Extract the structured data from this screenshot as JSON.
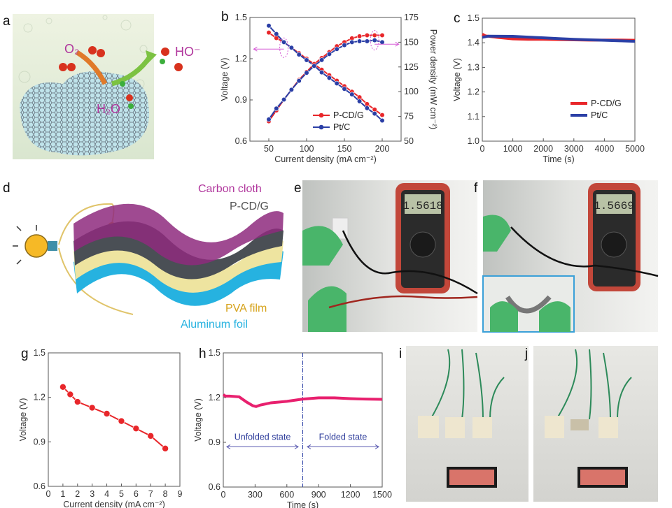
{
  "panels": {
    "a": {
      "letter": "a",
      "labels": {
        "o2": "O₂",
        "ho": "HO⁻",
        "h2o": "H₂O"
      }
    },
    "b": {
      "letter": "b"
    },
    "c": {
      "letter": "c"
    },
    "d": {
      "letter": "d",
      "labels": {
        "carbon": "Carbon cloth",
        "pcdg": "P-CD/G",
        "pva": "PVA film",
        "al": "Aluminum foil"
      }
    },
    "e": {
      "letter": "e",
      "meter_reading": "1.5618"
    },
    "f": {
      "letter": "f",
      "meter_reading": "1.5669"
    },
    "g": {
      "letter": "g"
    },
    "h": {
      "letter": "h"
    },
    "i": {
      "letter": "i"
    },
    "j": {
      "letter": "j"
    }
  },
  "colors": {
    "pcdg": "#e8262a",
    "ptc": "#2b3fa6",
    "h_trace": "#e8206e",
    "annotation": "#2b3a9a",
    "arrow_pink": "#d65bd6"
  },
  "chart_data": [
    {
      "id": "b",
      "type": "line",
      "xlabel": "Current density (mA cm⁻²)",
      "ylabel": "Voltage (V)",
      "y2label": "Power density (mW cm⁻²)",
      "xlim": [
        25,
        225
      ],
      "xticks": [
        50,
        100,
        150,
        200
      ],
      "ylim": [
        0.6,
        1.5
      ],
      "yticks": [
        0.6,
        0.9,
        1.2,
        1.5
      ],
      "y2lim": [
        50,
        175
      ],
      "y2ticks": [
        50,
        75,
        100,
        125,
        150,
        175
      ],
      "grid": false,
      "legend_position": "bottom-right",
      "legend": [
        {
          "label": "P-CD/G",
          "color": "#e8262a"
        },
        {
          "label": "Pt/C",
          "color": "#2b3fa6"
        }
      ],
      "series": [
        {
          "group": "P-CD/G",
          "quantity": "voltage",
          "axis": "left",
          "color": "#e8262a",
          "markers": true,
          "x": [
            50,
            60,
            70,
            80,
            90,
            100,
            110,
            120,
            130,
            140,
            150,
            160,
            170,
            180,
            190,
            200
          ],
          "y": [
            1.39,
            1.35,
            1.32,
            1.28,
            1.24,
            1.2,
            1.16,
            1.12,
            1.08,
            1.04,
            1.0,
            0.96,
            0.92,
            0.87,
            0.83,
            0.79
          ]
        },
        {
          "group": "Pt/C",
          "quantity": "voltage",
          "axis": "left",
          "color": "#2b3fa6",
          "markers": true,
          "x": [
            50,
            60,
            70,
            80,
            90,
            100,
            110,
            120,
            130,
            140,
            150,
            160,
            170,
            180,
            190,
            200
          ],
          "y": [
            1.44,
            1.38,
            1.32,
            1.28,
            1.23,
            1.19,
            1.15,
            1.1,
            1.06,
            1.02,
            0.98,
            0.94,
            0.89,
            0.84,
            0.8,
            0.75
          ]
        },
        {
          "group": "P-CD/G",
          "quantity": "power density",
          "axis": "right",
          "color": "#e8262a",
          "markers": true,
          "x": [
            50,
            60,
            70,
            80,
            90,
            100,
            110,
            120,
            130,
            140,
            150,
            160,
            170,
            180,
            190,
            200
          ],
          "y": [
            70,
            81,
            92,
            102,
            112,
            120,
            128,
            134,
            140,
            146,
            150,
            154,
            156,
            157,
            157,
            157
          ]
        },
        {
          "group": "Pt/C",
          "quantity": "power density",
          "axis": "right",
          "color": "#2b3fa6",
          "markers": true,
          "x": [
            50,
            60,
            70,
            80,
            90,
            100,
            110,
            120,
            130,
            140,
            150,
            160,
            170,
            180,
            190,
            200
          ],
          "y": [
            72,
            83,
            92,
            102,
            111,
            119,
            126,
            132,
            138,
            143,
            147,
            150,
            151,
            151,
            152,
            150
          ]
        }
      ]
    },
    {
      "id": "c",
      "type": "line",
      "xlabel": "Time (s)",
      "ylabel": "Voltage (V)",
      "xlim": [
        0,
        5000
      ],
      "xticks": [
        0,
        1000,
        2000,
        3000,
        4000,
        5000
      ],
      "ylim": [
        1.0,
        1.5
      ],
      "yticks": [
        1.0,
        1.1,
        1.2,
        1.3,
        1.4,
        1.5
      ],
      "grid": false,
      "legend_position": "bottom-right",
      "legend": [
        {
          "label": "P-CD/G",
          "color": "#e8262a"
        },
        {
          "label": "Pt/C",
          "color": "#2b3fa6"
        }
      ],
      "series": [
        {
          "group": "P-CD/G",
          "axis": "left",
          "color": "#e8262a",
          "markers": false,
          "x": [
            0,
            100,
            500,
            1000,
            1500,
            2000,
            2500,
            3000,
            3500,
            4000,
            4500,
            5000
          ],
          "y": [
            1.435,
            1.428,
            1.422,
            1.416,
            1.414,
            1.414,
            1.413,
            1.412,
            1.411,
            1.411,
            1.411,
            1.41
          ]
        },
        {
          "group": "Pt/C",
          "axis": "left",
          "color": "#2b3fa6",
          "markers": false,
          "x": [
            0,
            200,
            1000,
            1500,
            2000,
            2500,
            3000,
            3500,
            4000,
            4500,
            5000
          ],
          "y": [
            1.422,
            1.427,
            1.426,
            1.423,
            1.42,
            1.417,
            1.414,
            1.412,
            1.41,
            1.408,
            1.406
          ]
        }
      ]
    },
    {
      "id": "g",
      "type": "line",
      "xlabel": "Current density (mA cm⁻²)",
      "ylabel": "Voltage (V)",
      "xlim": [
        0,
        9
      ],
      "xticks": [
        0,
        1,
        2,
        3,
        4,
        5,
        6,
        7,
        8,
        9
      ],
      "ylim": [
        0.6,
        1.5
      ],
      "yticks": [
        0.6,
        0.9,
        1.2,
        1.5
      ],
      "grid": false,
      "series": [
        {
          "axis": "left",
          "color": "#e8262a",
          "markers": true,
          "x": [
            1,
            1.5,
            2,
            3,
            4,
            5,
            6,
            7,
            8
          ],
          "y": [
            1.27,
            1.22,
            1.17,
            1.13,
            1.09,
            1.04,
            0.99,
            0.94,
            0.855
          ]
        }
      ]
    },
    {
      "id": "h",
      "type": "line",
      "xlabel": "Time (s)",
      "ylabel": "Voltage (V)",
      "xlim": [
        0,
        1500
      ],
      "xticks": [
        0,
        300,
        600,
        900,
        1200,
        1500
      ],
      "ylim": [
        0.6,
        1.5
      ],
      "yticks": [
        0.6,
        0.9,
        1.2,
        1.5
      ],
      "grid": false,
      "vline": 750,
      "annotations": [
        {
          "text": "Unfolded state",
          "x_from": 0,
          "x_to": 740,
          "y": 0.87
        },
        {
          "text": "Folded state",
          "x_from": 760,
          "x_to": 1500,
          "y": 0.87
        }
      ],
      "series": [
        {
          "axis": "left",
          "color": "#e8206e",
          "markers": false,
          "x": [
            0,
            20,
            60,
            150,
            220,
            280,
            310,
            350,
            450,
            600,
            750,
            900,
            1050,
            1200,
            1350,
            1500
          ],
          "y": [
            1.22,
            1.21,
            1.21,
            1.205,
            1.17,
            1.145,
            1.14,
            1.15,
            1.165,
            1.175,
            1.19,
            1.198,
            1.198,
            1.193,
            1.19,
            1.188
          ]
        }
      ]
    }
  ]
}
